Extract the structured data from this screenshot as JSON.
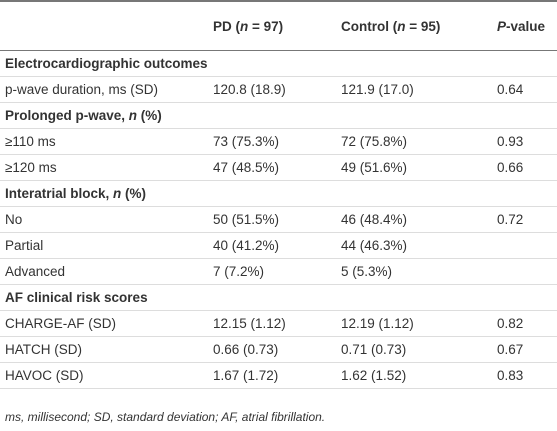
{
  "table": {
    "header": [
      [
        {
          "text": "PD ("
        },
        {
          "text": "n",
          "italic": true
        },
        {
          "text": " = 97)"
        }
      ],
      [
        {
          "text": "Control ("
        },
        {
          "text": "n",
          "italic": true
        },
        {
          "text": " = 95)"
        }
      ],
      [
        {
          "text": "P",
          "italic": true
        },
        {
          "text": "-value"
        }
      ]
    ],
    "rows": [
      {
        "section": [
          {
            "text": "Electrocardiographic outcomes"
          }
        ]
      },
      {
        "cells": [
          "p-wave duration, ms (SD)",
          "120.8 (18.9)",
          "121.9 (17.0)",
          "0.64"
        ]
      },
      {
        "section": [
          {
            "text": "Prolonged p-wave, "
          },
          {
            "text": "n",
            "italic": true
          },
          {
            "text": " (%)"
          }
        ]
      },
      {
        "cells": [
          "≥110 ms",
          "73 (75.3%)",
          "72 (75.8%)",
          "0.93"
        ]
      },
      {
        "cells": [
          "≥120 ms",
          "47 (48.5%)",
          "49 (51.6%)",
          "0.66"
        ]
      },
      {
        "section": [
          {
            "text": "Interatrial block, "
          },
          {
            "text": "n",
            "italic": true
          },
          {
            "text": " (%)"
          }
        ]
      },
      {
        "cells": [
          "No",
          "50 (51.5%)",
          "46 (48.4%)",
          "0.72"
        ]
      },
      {
        "cells": [
          "Partial",
          "40 (41.2%)",
          "44 (46.3%)"
        ]
      },
      {
        "cells": [
          "Advanced",
          "7 (7.2%)",
          "5 (5.3%)"
        ]
      },
      {
        "section": [
          {
            "text": "AF clinical risk scores"
          }
        ]
      },
      {
        "cells": [
          "CHARGE-AF (SD)",
          "12.15 (1.12)",
          "12.19 (1.12)",
          "0.82"
        ]
      },
      {
        "cells": [
          "HATCH (SD)",
          "0.66 (0.73)",
          "0.71 (0.73)",
          "0.67"
        ]
      },
      {
        "cells": [
          "HAVOC (SD)",
          "1.67 (1.72)",
          "1.62 (1.52)",
          "0.83"
        ]
      }
    ],
    "footnote": "ms, millisecond; SD, standard deviation; AF, atrial fibrillation."
  }
}
